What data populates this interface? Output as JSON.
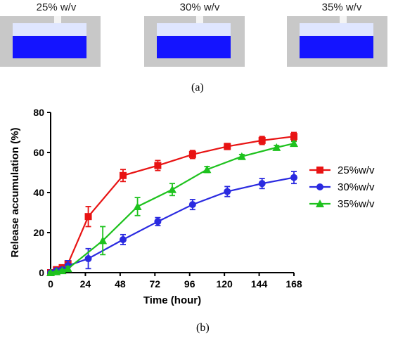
{
  "panel_a": {
    "vials": [
      {
        "label": "25% w/v",
        "fill_level": 0.64
      },
      {
        "label": "30% w/v",
        "fill_level": 0.64
      },
      {
        "label": "35% w/v",
        "fill_level": 0.64
      }
    ],
    "caption": "(a)",
    "colors": {
      "liquid": "#1414ff",
      "headspace": "#dfe6ff",
      "frame": "#c8c8c8"
    }
  },
  "panel_b": {
    "caption": "(b)"
  },
  "chart_data": {
    "type": "line",
    "xlabel": "Time (hour)",
    "ylabel": "Release accumulation (%)",
    "xlim": [
      0,
      168
    ],
    "ylim": [
      0,
      80
    ],
    "xticks": [
      0,
      24,
      48,
      72,
      96,
      120,
      144,
      168
    ],
    "yticks": [
      0,
      20,
      40,
      60,
      80
    ],
    "grid": false,
    "legend_position": "right",
    "series": [
      {
        "name": "25%w/v",
        "color": "#e81313",
        "marker": "square",
        "points": [
          {
            "x": 0,
            "y": 0,
            "err": 0.5
          },
          {
            "x": 4,
            "y": 1.5,
            "err": 0.8
          },
          {
            "x": 8,
            "y": 2.5,
            "err": 0.8
          },
          {
            "x": 12,
            "y": 4.5,
            "err": 1.2
          },
          {
            "x": 26,
            "y": 28,
            "err": 5
          },
          {
            "x": 50,
            "y": 48.5,
            "err": 3
          },
          {
            "x": 74,
            "y": 53.5,
            "err": 2.5
          },
          {
            "x": 98,
            "y": 59,
            "err": 2
          },
          {
            "x": 122,
            "y": 63,
            "err": 1.5
          },
          {
            "x": 146,
            "y": 66,
            "err": 2
          },
          {
            "x": 168,
            "y": 68,
            "err": 2
          }
        ]
      },
      {
        "name": "30%w/v",
        "color": "#2a2ae0",
        "marker": "circle",
        "points": [
          {
            "x": 0,
            "y": 0,
            "err": 0.5
          },
          {
            "x": 4,
            "y": 1,
            "err": 0.8
          },
          {
            "x": 8,
            "y": 1.5,
            "err": 1
          },
          {
            "x": 12,
            "y": 3.5,
            "err": 2.5
          },
          {
            "x": 26,
            "y": 7,
            "err": 5
          },
          {
            "x": 50,
            "y": 16.5,
            "err": 2.5
          },
          {
            "x": 74,
            "y": 25.5,
            "err": 2
          },
          {
            "x": 98,
            "y": 34,
            "err": 2.5
          },
          {
            "x": 122,
            "y": 40.5,
            "err": 2.5
          },
          {
            "x": 146,
            "y": 44.5,
            "err": 2.5
          },
          {
            "x": 168,
            "y": 47.5,
            "err": 3
          }
        ]
      },
      {
        "name": "35%w/v",
        "color": "#1ec21e",
        "marker": "triangle",
        "points": [
          {
            "x": 0,
            "y": 0,
            "err": 0.3
          },
          {
            "x": 4,
            "y": 0.5,
            "err": 0.3
          },
          {
            "x": 8,
            "y": 1,
            "err": 0.5
          },
          {
            "x": 12,
            "y": 2,
            "err": 1
          },
          {
            "x": 36,
            "y": 16,
            "err": 7
          },
          {
            "x": 60,
            "y": 33,
            "err": 4.5
          },
          {
            "x": 84,
            "y": 41.5,
            "err": 3
          },
          {
            "x": 108,
            "y": 51.5,
            "err": 1.5
          },
          {
            "x": 132,
            "y": 58,
            "err": 1
          },
          {
            "x": 156,
            "y": 62.5,
            "err": 1
          },
          {
            "x": 168,
            "y": 64.5,
            "err": 1
          }
        ]
      }
    ]
  }
}
